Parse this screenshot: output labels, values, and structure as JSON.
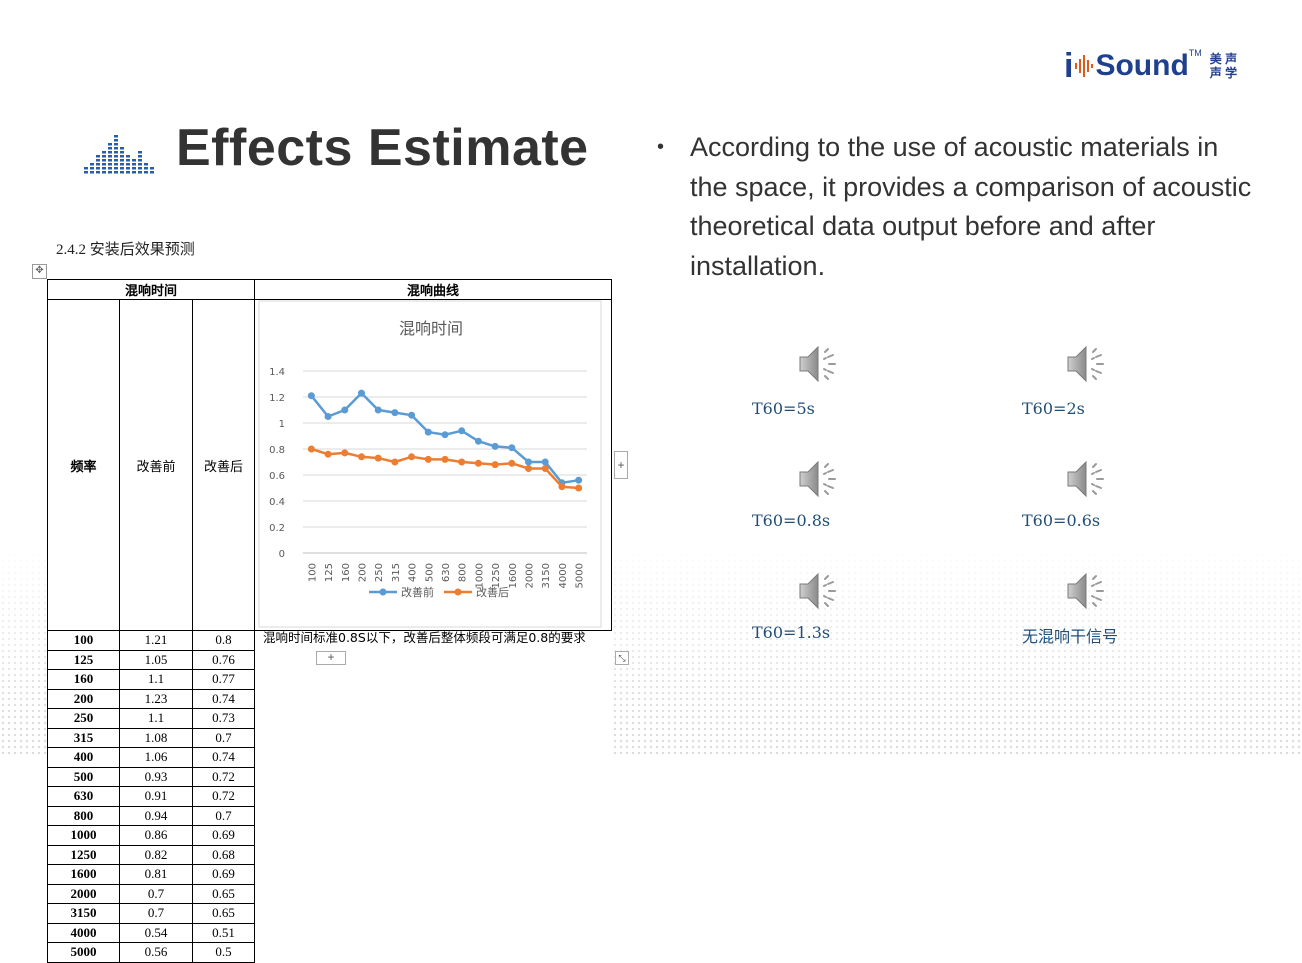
{
  "logo": {
    "i": "i",
    "sound": "Sound",
    "tm": "TM",
    "cn_line1": "美 声",
    "cn_line2": "声 学"
  },
  "title": "Effects Estimate",
  "description": "According to the use of acoustic materials in the space, it provides a comparison of acoustic theoretical data output before and after installation.",
  "section_heading": "2.4.2   安装后效果预测",
  "table": {
    "header_left": "混响时间",
    "header_right": "混响曲线",
    "columns": [
      "频率",
      "改善前",
      "改善后"
    ],
    "rows": [
      [
        "100",
        "1.21",
        "0.8"
      ],
      [
        "125",
        "1.05",
        "0.76"
      ],
      [
        "160",
        "1.1",
        "0.77"
      ],
      [
        "200",
        "1.23",
        "0.74"
      ],
      [
        "250",
        "1.1",
        "0.73"
      ],
      [
        "315",
        "1.08",
        "0.7"
      ],
      [
        "400",
        "1.06",
        "0.74"
      ],
      [
        "500",
        "0.93",
        "0.72"
      ],
      [
        "630",
        "0.91",
        "0.72"
      ],
      [
        "800",
        "0.94",
        "0.7"
      ],
      [
        "1000",
        "0.86",
        "0.69"
      ],
      [
        "1250",
        "0.82",
        "0.68"
      ],
      [
        "1600",
        "0.81",
        "0.69"
      ],
      [
        "2000",
        "0.7",
        "0.65"
      ],
      [
        "3150",
        "0.7",
        "0.65"
      ],
      [
        "4000",
        "0.54",
        "0.51"
      ],
      [
        "5000",
        "0.56",
        "0.5"
      ]
    ],
    "note": "混响时间标准0.8S以下，改善后整体频段可满足0.8的要求"
  },
  "chart_data": {
    "type": "line",
    "title": "混响时间",
    "categories": [
      "100",
      "125",
      "160",
      "200",
      "250",
      "315",
      "400",
      "500",
      "630",
      "800",
      "1000",
      "1250",
      "1600",
      "2000",
      "3150",
      "4000",
      "5000"
    ],
    "series": [
      {
        "name": "改善前",
        "color": "#5b9bd5",
        "values": [
          1.21,
          1.05,
          1.1,
          1.23,
          1.1,
          1.08,
          1.06,
          0.93,
          0.91,
          0.94,
          0.86,
          0.82,
          0.81,
          0.7,
          0.7,
          0.54,
          0.56
        ]
      },
      {
        "name": "改善后",
        "color": "#ed7d31",
        "values": [
          0.8,
          0.76,
          0.77,
          0.74,
          0.73,
          0.7,
          0.74,
          0.72,
          0.72,
          0.7,
          0.69,
          0.68,
          0.69,
          0.65,
          0.65,
          0.51,
          0.5
        ]
      }
    ],
    "ylim": [
      0,
      1.4
    ],
    "yticks": [
      "0",
      "0.2",
      "0.4",
      "0.6",
      "0.8",
      "1",
      "1.2",
      "1.4"
    ],
    "grid": true,
    "legend": "bottom"
  },
  "audio_samples": [
    {
      "label": "T60=5s",
      "icon": "speaker-icon"
    },
    {
      "label": "T60=2s",
      "icon": "speaker-icon"
    },
    {
      "label": "T60=0.8s",
      "icon": "speaker-icon"
    },
    {
      "label": "T60=0.6s",
      "icon": "speaker-icon"
    },
    {
      "label": "T60=1.3s",
      "icon": "speaker-icon"
    },
    {
      "label": "无混响干信号",
      "icon": "speaker-icon"
    }
  ],
  "colors": {
    "brand_blue": "#1f3f8f",
    "label_blue": "#1f4e79"
  }
}
